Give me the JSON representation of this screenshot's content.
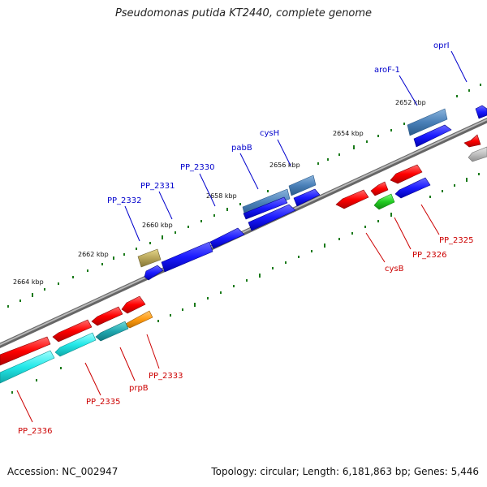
{
  "title": "Pseudomonas putida KT2440, complete genome",
  "footer": {
    "accession": "Accession: NC_002947",
    "summary": "Topology: circular; Length: 6,181,863 bp; Genes: 5,446"
  },
  "colors": {
    "forward_label": "#0000cc",
    "reverse_label": "#cc0000",
    "tick": "#1a7a1a",
    "backbone": "#888888"
  },
  "ticks": [
    {
      "label": "2652 kbp"
    },
    {
      "label": "2654 kbp"
    },
    {
      "label": "2656 kbp"
    },
    {
      "label": "2658 kbp"
    },
    {
      "label": "2660 kbp"
    },
    {
      "label": "2662 kbp"
    },
    {
      "label": "2664 kbp"
    }
  ],
  "forward_labels": [
    {
      "text": "oprI"
    },
    {
      "text": "aroF-1"
    },
    {
      "text": "cysH"
    },
    {
      "text": "pabB"
    },
    {
      "text": "PP_2330"
    },
    {
      "text": "PP_2331"
    },
    {
      "text": "PP_2332"
    }
  ],
  "reverse_labels": [
    {
      "text": "PP_2325"
    },
    {
      "text": "PP_2326"
    },
    {
      "text": "cysB"
    },
    {
      "text": "PP_2333"
    },
    {
      "text": "prpB"
    },
    {
      "text": "PP_2335"
    },
    {
      "text": "PP_2336"
    }
  ]
}
